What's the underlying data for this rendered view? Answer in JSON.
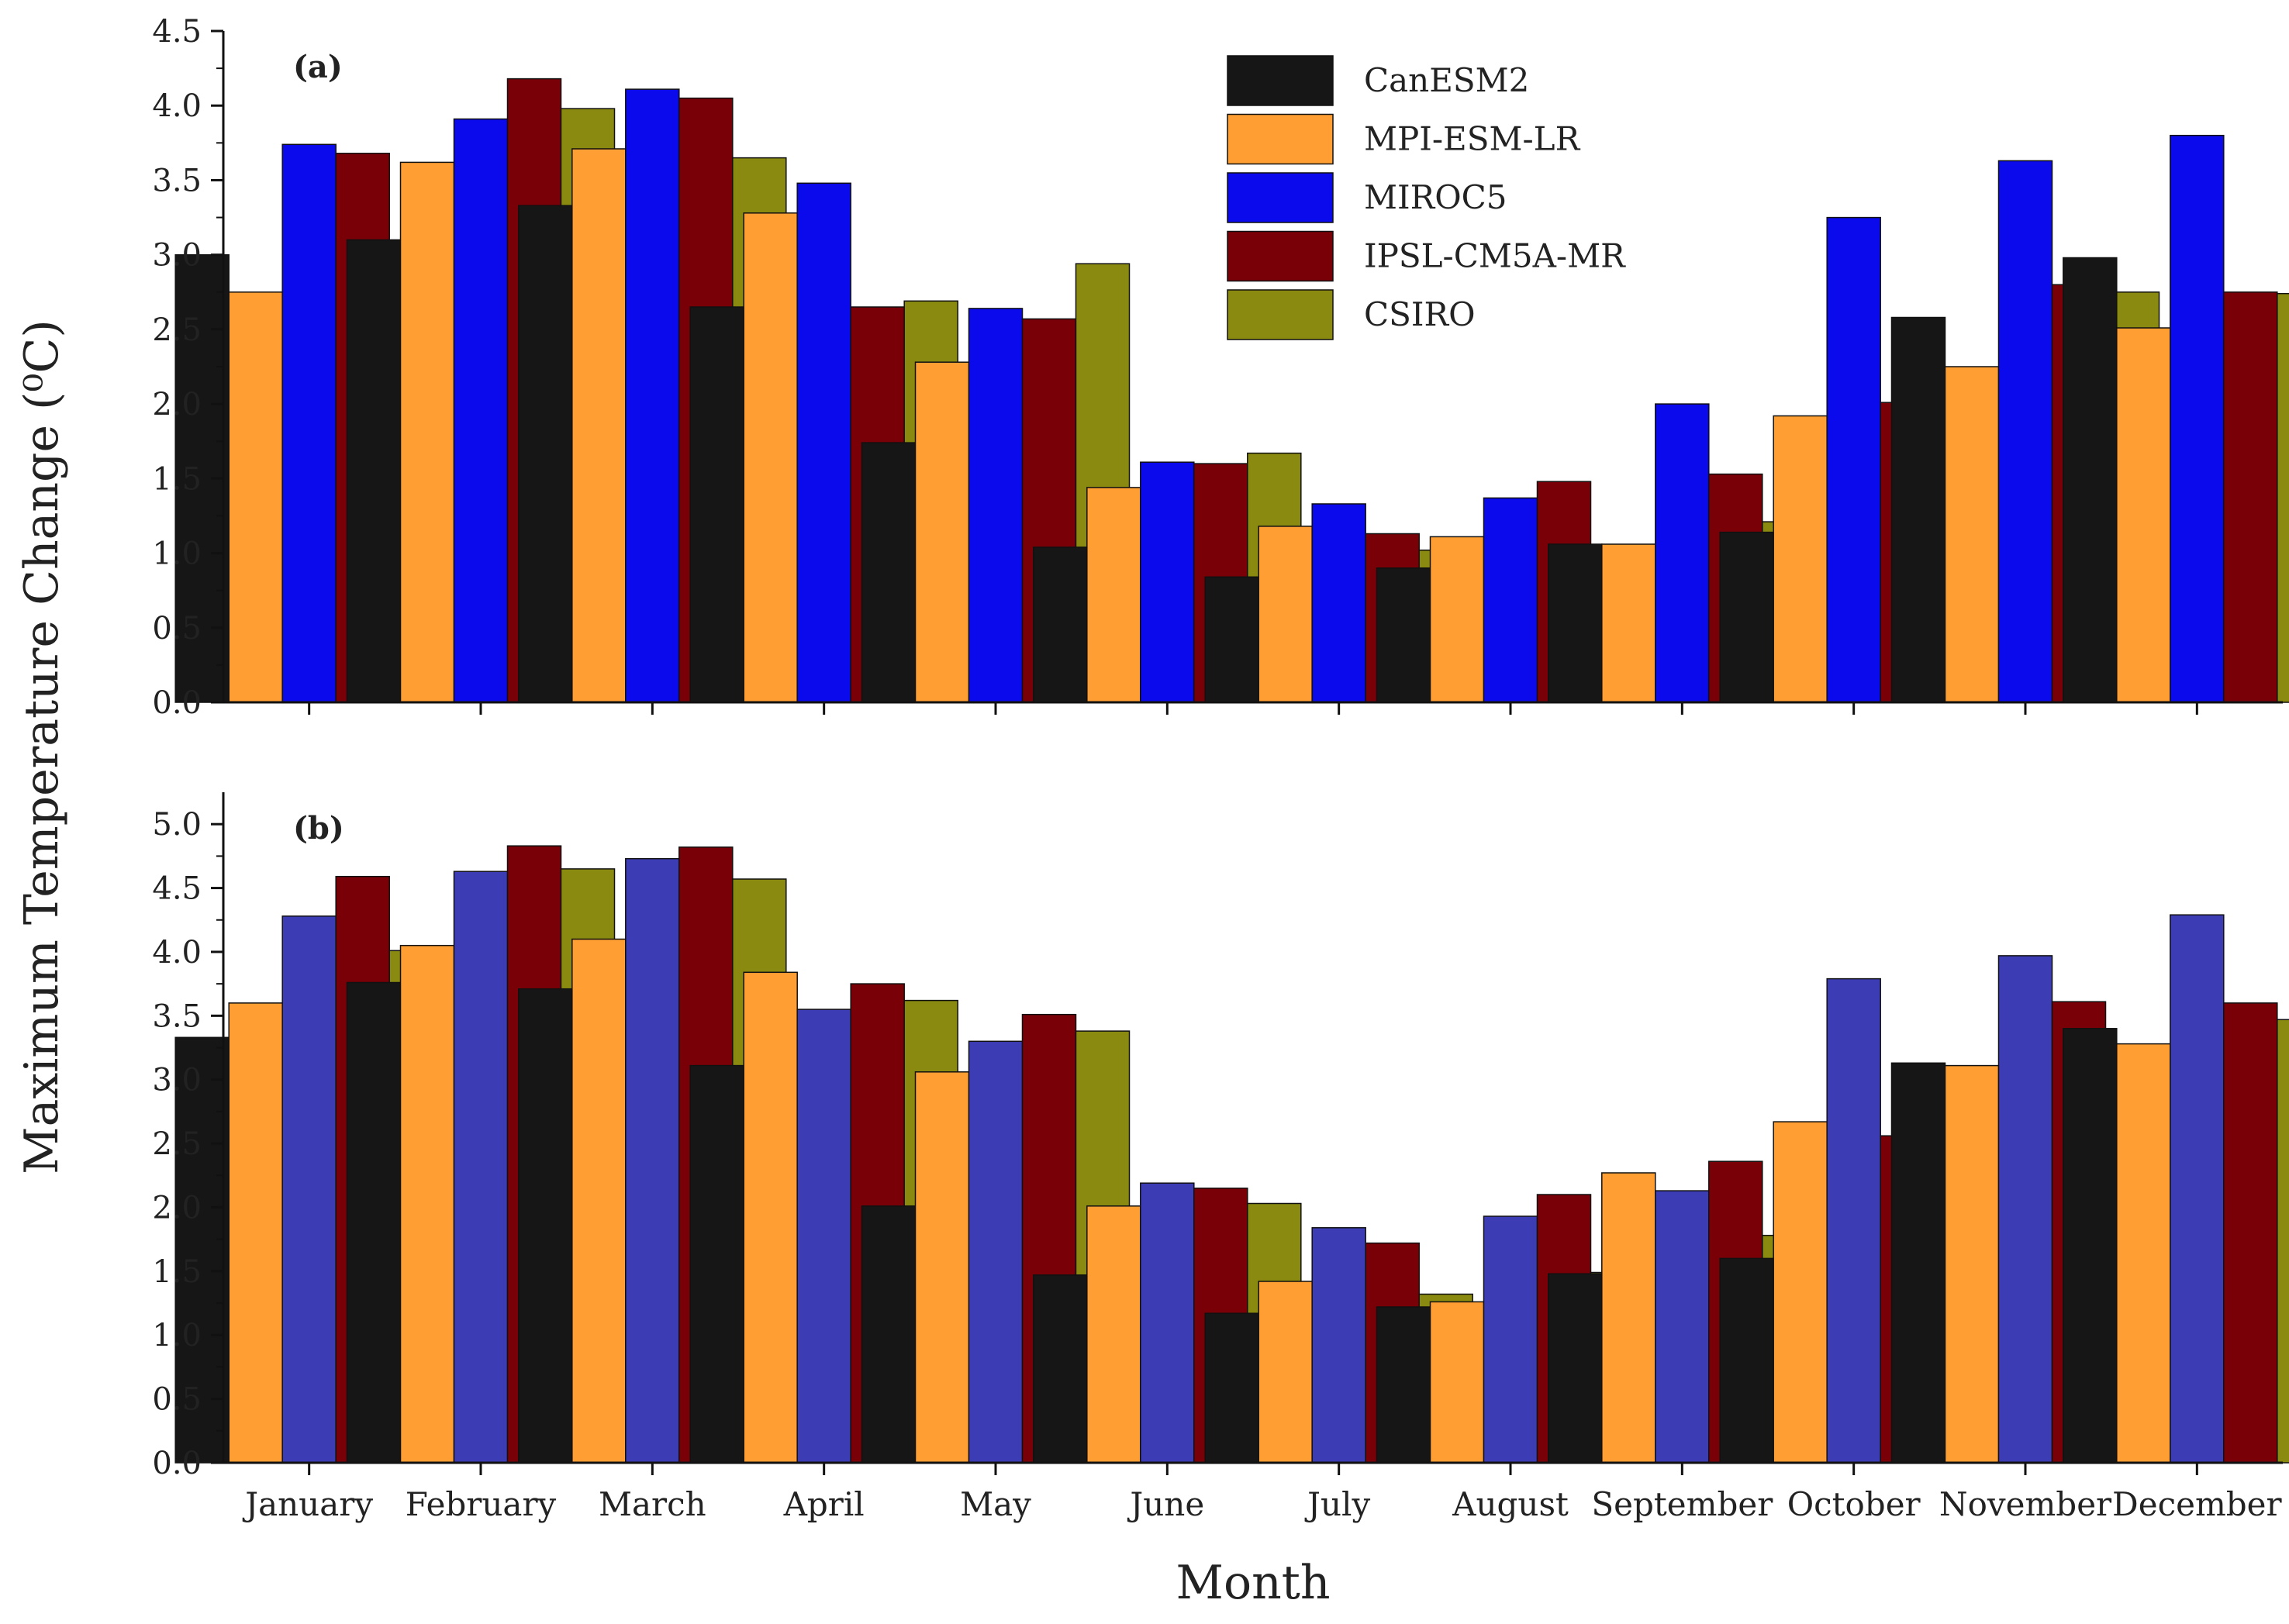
{
  "chart_data": [
    {
      "type": "bar",
      "panel": "(a)",
      "title": "",
      "xlabel": "",
      "ylabel": "Maximum Temperature Change (⁰C)",
      "ylim": [
        0,
        4.5
      ],
      "yticks": [
        "0.0",
        "0.5",
        "1.0",
        "1.5",
        "2.0",
        "2.5",
        "3.0",
        "3.5",
        "4.0",
        "4.5"
      ],
      "grid": false,
      "legend": "top-right",
      "categories": [
        "January",
        "February",
        "March",
        "April",
        "May",
        "June",
        "July",
        "August",
        "September",
        "October",
        "November",
        "December"
      ],
      "series": [
        {
          "name": "CanESM2",
          "color": "#161616",
          "values": [
            3.0,
            3.1,
            3.33,
            2.65,
            1.74,
            1.04,
            0.84,
            0.9,
            1.06,
            1.14,
            2.58,
            2.98
          ]
        },
        {
          "name": "MPI-ESM-LR",
          "color": "#FF9F33",
          "values": [
            2.75,
            3.62,
            3.71,
            3.28,
            2.28,
            1.44,
            1.18,
            1.11,
            1.06,
            1.92,
            2.25,
            2.51
          ]
        },
        {
          "name": "MIROC5",
          "color": "#0A0AEC",
          "values": [
            3.74,
            3.91,
            4.11,
            3.48,
            2.64,
            1.61,
            1.33,
            1.37,
            2.0,
            3.25,
            3.63,
            3.8
          ]
        },
        {
          "name": "IPSL-CM5A-MR",
          "color": "#7A0008",
          "values": [
            3.68,
            4.18,
            4.05,
            2.65,
            2.57,
            1.6,
            1.13,
            1.48,
            1.53,
            2.01,
            2.8,
            2.75
          ]
        },
        {
          "name": "CSIRO",
          "color": "#8A8A10",
          "values": [
            2.99,
            3.98,
            3.65,
            2.69,
            2.94,
            1.67,
            1.02,
            0.39,
            1.21,
            1.91,
            2.75,
            2.74
          ]
        }
      ]
    },
    {
      "type": "bar",
      "panel": "(b)",
      "title": "",
      "xlabel": "Month",
      "ylabel": "Maximum Temperature Change (⁰C)",
      "ylim": [
        0,
        5.25
      ],
      "yticks": [
        "0.0",
        "0.5",
        "1.0",
        "1.5",
        "2.0",
        "2.5",
        "3.0",
        "3.5",
        "4.0",
        "4.5",
        "5.0"
      ],
      "grid": false,
      "legend": "top-right",
      "categories": [
        "January",
        "February",
        "March",
        "April",
        "May",
        "June",
        "July",
        "August",
        "September",
        "October",
        "November",
        "December"
      ],
      "series": [
        {
          "name": "CanESM2",
          "color": "#161616",
          "values": [
            3.33,
            3.76,
            3.71,
            3.11,
            2.01,
            1.47,
            1.17,
            1.22,
            1.48,
            1.6,
            3.13,
            3.4
          ]
        },
        {
          "name": "MPI-ESM-LR",
          "color": "#FF9F33",
          "values": [
            3.6,
            4.05,
            4.1,
            3.84,
            3.06,
            2.01,
            1.42,
            1.26,
            2.27,
            2.67,
            3.11,
            3.28
          ]
        },
        {
          "name": "MIROC5",
          "color": "#3C3CB4",
          "values": [
            4.28,
            4.63,
            4.73,
            3.55,
            3.3,
            2.19,
            1.84,
            1.93,
            2.13,
            3.79,
            3.97,
            4.29
          ]
        },
        {
          "name": "IPSL-CM5A-MR",
          "color": "#7A0008",
          "values": [
            4.59,
            4.83,
            4.82,
            3.75,
            3.51,
            2.15,
            1.72,
            2.1,
            2.36,
            2.56,
            3.61,
            3.6
          ]
        },
        {
          "name": "CSIRO",
          "color": "#8A8A10",
          "values": [
            4.01,
            4.65,
            4.57,
            3.62,
            3.38,
            2.03,
            1.32,
            1.49,
            1.78,
            2.47,
            3.27,
            3.47
          ]
        }
      ]
    }
  ]
}
